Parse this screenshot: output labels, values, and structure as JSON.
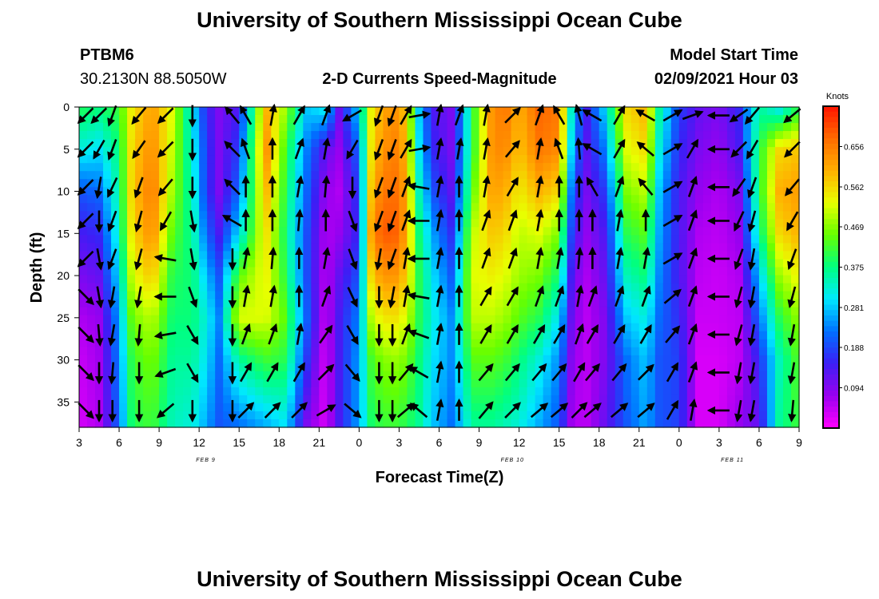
{
  "chart_data": {
    "type": "heatmap",
    "title": "University of Southern Mississippi Ocean Cube",
    "footer_title": "University of Southern Mississippi Ocean Cube",
    "station": {
      "id": "PTBM6",
      "coords": "30.2130N 88.5050W"
    },
    "subtitle": "2-D Currents Speed-Magnitude",
    "model_start": {
      "label": "Model Start Time",
      "value": "02/09/2021 Hour 03"
    },
    "xlabel": "Forecast Time(Z)",
    "ylabel": "Depth (ft)",
    "units": "Knots",
    "x_hours_range": [
      0,
      54
    ],
    "y_depth_range": [
      0,
      38
    ],
    "x_tick_labels": [
      "3",
      "6",
      "9",
      "12",
      "15",
      "18",
      "21",
      "0",
      "3",
      "6",
      "9",
      "12",
      "15",
      "18",
      "21",
      "0",
      "3",
      "6",
      "9"
    ],
    "y_tick_labels": [
      "0",
      "5",
      "10",
      "15",
      "20",
      "25",
      "30",
      "35"
    ],
    "date_labels": [
      {
        "text": "FEB  9",
        "hour": 9.5
      },
      {
        "text": "FEB  10",
        "hour": 32.5
      },
      {
        "text": "FEB  11",
        "hour": 49
      }
    ],
    "colorbar_ticks": [
      "0.656",
      "0.562",
      "0.469",
      "0.375",
      "0.281",
      "0.188",
      "0.094"
    ],
    "color_range": [
      0.0,
      0.75
    ],
    "colormap": [
      "#ff00ff",
      "#9b00f0",
      "#3c1ef5",
      "#0070ff",
      "#00e8ff",
      "#00ff80",
      "#66ff00",
      "#e8ff00",
      "#ffb000",
      "#ff6a00",
      "#ff1400"
    ],
    "speed_profile": [
      {
        "h": 0,
        "s": [
          0.4,
          0.32,
          0.2,
          0.14,
          0.1,
          0.06,
          0.04,
          0.03
        ]
      },
      {
        "h": 1.5,
        "s": [
          0.38,
          0.3,
          0.22,
          0.16,
          0.12,
          0.08,
          0.07,
          0.06
        ]
      },
      {
        "h": 3,
        "s": [
          0.42,
          0.38,
          0.36,
          0.34,
          0.3,
          0.26,
          0.24,
          0.22
        ]
      },
      {
        "h": 4,
        "s": [
          0.55,
          0.57,
          0.58,
          0.56,
          0.52,
          0.46,
          0.42,
          0.4
        ]
      },
      {
        "h": 5.5,
        "s": [
          0.62,
          0.64,
          0.66,
          0.64,
          0.58,
          0.5,
          0.46,
          0.42
        ]
      },
      {
        "h": 7,
        "s": [
          0.52,
          0.5,
          0.48,
          0.44,
          0.4,
          0.38,
          0.36,
          0.34
        ]
      },
      {
        "h": 8.5,
        "s": [
          0.3,
          0.32,
          0.34,
          0.36,
          0.38,
          0.38,
          0.36,
          0.32
        ]
      },
      {
        "h": 9.5,
        "s": [
          0.16,
          0.18,
          0.18,
          0.22,
          0.28,
          0.32,
          0.3,
          0.26
        ]
      },
      {
        "h": 10.5,
        "s": [
          0.1,
          0.1,
          0.1,
          0.14,
          0.2,
          0.24,
          0.22,
          0.2
        ]
      },
      {
        "h": 12,
        "s": [
          0.14,
          0.18,
          0.22,
          0.3,
          0.44,
          0.52,
          0.36,
          0.22
        ]
      },
      {
        "h": 14,
        "s": [
          0.6,
          0.64,
          0.6,
          0.56,
          0.54,
          0.52,
          0.42,
          0.26
        ]
      },
      {
        "h": 15.5,
        "s": [
          0.48,
          0.42,
          0.4,
          0.38,
          0.4,
          0.44,
          0.4,
          0.3
        ]
      },
      {
        "h": 17,
        "s": [
          0.28,
          0.24,
          0.22,
          0.2,
          0.2,
          0.22,
          0.18,
          0.1
        ]
      },
      {
        "h": 18.5,
        "s": [
          0.32,
          0.12,
          0.08,
          0.06,
          0.05,
          0.04,
          0.03,
          0.03
        ]
      },
      {
        "h": 19.5,
        "s": [
          0.12,
          0.08,
          0.06,
          0.08,
          0.12,
          0.14,
          0.14,
          0.14
        ]
      },
      {
        "h": 21,
        "s": [
          0.3,
          0.22,
          0.18,
          0.16,
          0.2,
          0.24,
          0.26,
          0.26
        ]
      },
      {
        "h": 22,
        "s": [
          0.56,
          0.58,
          0.62,
          0.66,
          0.6,
          0.52,
          0.44,
          0.4
        ]
      },
      {
        "h": 23.5,
        "s": [
          0.64,
          0.66,
          0.68,
          0.7,
          0.64,
          0.56,
          0.48,
          0.42
        ]
      },
      {
        "h": 24.5,
        "s": [
          0.58,
          0.6,
          0.62,
          0.62,
          0.58,
          0.52,
          0.46,
          0.4
        ]
      },
      {
        "h": 25.5,
        "s": [
          0.28,
          0.3,
          0.34,
          0.38,
          0.4,
          0.4,
          0.38,
          0.36
        ]
      },
      {
        "h": 26.5,
        "s": [
          0.14,
          0.16,
          0.2,
          0.26,
          0.3,
          0.32,
          0.3,
          0.28
        ]
      },
      {
        "h": 28,
        "s": [
          0.1,
          0.1,
          0.12,
          0.16,
          0.2,
          0.24,
          0.24,
          0.22
        ]
      },
      {
        "h": 29.5,
        "s": [
          0.4,
          0.4,
          0.44,
          0.5,
          0.52,
          0.5,
          0.44,
          0.36
        ]
      },
      {
        "h": 31,
        "s": [
          0.64,
          0.64,
          0.62,
          0.58,
          0.54,
          0.5,
          0.44,
          0.36
        ]
      },
      {
        "h": 32,
        "s": [
          0.66,
          0.64,
          0.6,
          0.56,
          0.52,
          0.48,
          0.42,
          0.34
        ]
      },
      {
        "h": 33,
        "s": [
          0.6,
          0.58,
          0.54,
          0.5,
          0.48,
          0.44,
          0.38,
          0.32
        ]
      },
      {
        "h": 34.5,
        "s": [
          0.68,
          0.66,
          0.6,
          0.52,
          0.46,
          0.4,
          0.32,
          0.26
        ]
      },
      {
        "h": 36,
        "s": [
          0.66,
          0.64,
          0.56,
          0.46,
          0.38,
          0.3,
          0.24,
          0.2
        ]
      },
      {
        "h": 37,
        "s": [
          0.3,
          0.26,
          0.2,
          0.16,
          0.12,
          0.1,
          0.08,
          0.06
        ]
      },
      {
        "h": 38,
        "s": [
          0.14,
          0.12,
          0.1,
          0.08,
          0.06,
          0.05,
          0.05,
          0.05
        ]
      },
      {
        "h": 39.5,
        "s": [
          0.3,
          0.24,
          0.18,
          0.14,
          0.12,
          0.1,
          0.1,
          0.12
        ]
      },
      {
        "h": 41,
        "s": [
          0.56,
          0.52,
          0.46,
          0.4,
          0.34,
          0.28,
          0.22,
          0.2
        ]
      },
      {
        "h": 42.5,
        "s": [
          0.6,
          0.56,
          0.5,
          0.44,
          0.38,
          0.32,
          0.28,
          0.26
        ]
      },
      {
        "h": 43.5,
        "s": [
          0.36,
          0.32,
          0.28,
          0.26,
          0.24,
          0.22,
          0.2,
          0.2
        ]
      },
      {
        "h": 45,
        "s": [
          0.18,
          0.16,
          0.14,
          0.14,
          0.14,
          0.16,
          0.18,
          0.18
        ]
      },
      {
        "h": 46.5,
        "s": [
          0.12,
          0.1,
          0.08,
          0.06,
          0.05,
          0.04,
          0.03,
          0.03
        ]
      },
      {
        "h": 48,
        "s": [
          0.1,
          0.08,
          0.06,
          0.05,
          0.04,
          0.04,
          0.03,
          0.03
        ]
      },
      {
        "h": 49.5,
        "s": [
          0.16,
          0.14,
          0.1,
          0.08,
          0.06,
          0.05,
          0.05,
          0.08
        ]
      },
      {
        "h": 51,
        "s": [
          0.36,
          0.4,
          0.4,
          0.36,
          0.28,
          0.22,
          0.16,
          0.12
        ]
      },
      {
        "h": 52.5,
        "s": [
          0.3,
          0.56,
          0.6,
          0.56,
          0.48,
          0.4,
          0.34,
          0.36
        ]
      },
      {
        "h": 54,
        "s": [
          0.4,
          0.58,
          0.62,
          0.6,
          0.54,
          0.48,
          0.44,
          0.42
        ]
      }
    ],
    "arrow_times": [
      0.5,
      1.5,
      2.5,
      4.5,
      6.5,
      8.5,
      11.5,
      12.5,
      14.5,
      16.5,
      18.5,
      20.5,
      22.5,
      23.5,
      24.5,
      25.5,
      27,
      28.5,
      30.5,
      32.5,
      34.5,
      36,
      37.5,
      38.5,
      40.5,
      42.5,
      44.5,
      46,
      48,
      49.5,
      50.5,
      53.5
    ],
    "arrow_depths": [
      1,
      5,
      9.5,
      13.5,
      18,
      22.5,
      27,
      31.5,
      36
    ],
    "arrow_directions_deg": [
      [
        225,
        225,
        225,
        225,
        225,
        135,
        135,
        135,
        135
      ],
      [
        225,
        210,
        190,
        180,
        170,
        170,
        175,
        180,
        180
      ],
      [
        200,
        200,
        205,
        200,
        200,
        190,
        190,
        185,
        180
      ],
      [
        220,
        215,
        200,
        195,
        195,
        190,
        185,
        180,
        180
      ],
      [
        225,
        225,
        220,
        210,
        280,
        270,
        260,
        250,
        230
      ],
      [
        180,
        180,
        180,
        170,
        170,
        160,
        150,
        150,
        180
      ],
      [
        320,
        315,
        315,
        300,
        180,
        180,
        180,
        180,
        180
      ],
      [
        330,
        340,
        0,
        0,
        10,
        10,
        20,
        30,
        45
      ],
      [
        10,
        0,
        0,
        0,
        5,
        10,
        20,
        30,
        45
      ],
      [
        30,
        20,
        10,
        5,
        0,
        0,
        10,
        30,
        45
      ],
      [
        20,
        10,
        5,
        0,
        10,
        20,
        35,
        45,
        60
      ],
      [
        240,
        210,
        180,
        160,
        160,
        155,
        150,
        140,
        130
      ],
      [
        200,
        200,
        200,
        200,
        190,
        180,
        180,
        180,
        180
      ],
      [
        200,
        200,
        200,
        200,
        200,
        190,
        180,
        180,
        180
      ],
      [
        30,
        30,
        20,
        20,
        10,
        10,
        20,
        40,
        50
      ],
      [
        80,
        80,
        280,
        270,
        270,
        280,
        290,
        300,
        310
      ],
      [
        10,
        10,
        10,
        10,
        10,
        10,
        10,
        10,
        10
      ],
      [
        20,
        10,
        0,
        0,
        0,
        0,
        0,
        0,
        0
      ],
      [
        10,
        10,
        10,
        20,
        20,
        30,
        30,
        40,
        40
      ],
      [
        45,
        40,
        30,
        20,
        20,
        30,
        30,
        40,
        45
      ],
      [
        20,
        10,
        10,
        10,
        10,
        20,
        30,
        40,
        50
      ],
      [
        330,
        340,
        0,
        0,
        10,
        20,
        30,
        40,
        50
      ],
      [
        345,
        355,
        0,
        0,
        5,
        10,
        20,
        30,
        45
      ],
      [
        300,
        300,
        330,
        0,
        0,
        20,
        30,
        40,
        50
      ],
      [
        30,
        30,
        20,
        10,
        10,
        20,
        30,
        40,
        50
      ],
      [
        300,
        310,
        320,
        0,
        10,
        20,
        30,
        45,
        50
      ],
      [
        60,
        60,
        60,
        60,
        60,
        50,
        40,
        30,
        30
      ],
      [
        70,
        30,
        20,
        20,
        20,
        20,
        20,
        20,
        10
      ],
      [
        270,
        270,
        270,
        270,
        270,
        270,
        270,
        270,
        270
      ],
      [
        235,
        225,
        215,
        205,
        200,
        195,
        195,
        190,
        190
      ],
      [
        220,
        210,
        200,
        195,
        190,
        190,
        190,
        190,
        190
      ],
      [
        230,
        225,
        220,
        210,
        200,
        195,
        190,
        190,
        185
      ]
    ]
  }
}
